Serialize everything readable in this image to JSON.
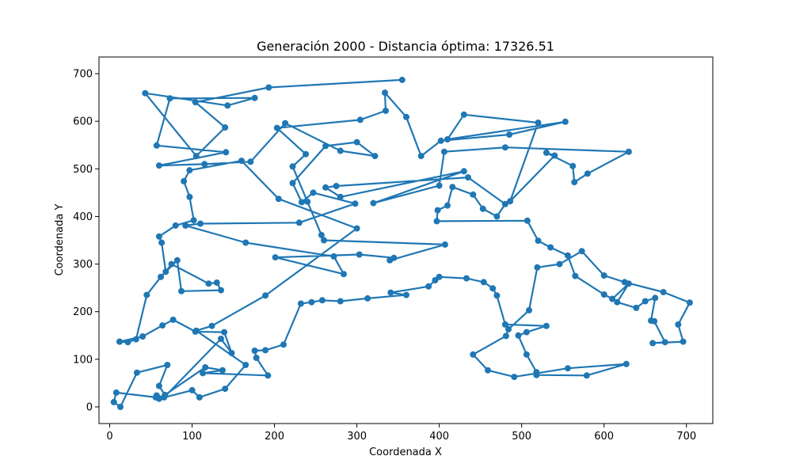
{
  "chart_data": {
    "type": "line",
    "title": "Generación 2000 - Distancia óptima: 17326.51",
    "xlabel": "Coordenada X",
    "ylabel": "Coordenada Y",
    "xlim": [
      -13,
      732
    ],
    "ylim": [
      -35,
      735
    ],
    "xticks": [
      0,
      100,
      200,
      300,
      400,
      500,
      600,
      700
    ],
    "yticks": [
      0,
      100,
      200,
      300,
      400,
      500,
      600,
      700
    ],
    "grid": false,
    "legend": "none",
    "color": "#1f77b4",
    "series": [
      {
        "marker": "circle",
        "x": [
          355,
          193,
          104,
          140,
          105,
          43,
          143,
          176,
          73,
          57,
          141,
          60,
          115,
          171,
          213,
          280,
          322,
          300,
          262,
          222,
          233,
          247,
          298,
          230,
          110,
          92,
          165,
          272,
          284,
          201,
          303,
          345,
          340,
          407,
          260,
          257,
          240,
          222,
          238,
          203,
          304,
          335,
          334,
          360,
          378,
          402,
          485,
          553,
          410,
          430,
          520,
          486,
          540,
          530,
          562,
          564,
          580,
          630,
          480,
          406,
          400,
          320,
          430,
          280,
          262,
          275,
          435,
          480,
          470,
          453,
          441,
          416,
          410,
          398,
          397,
          507,
          520,
          535,
          556,
          565,
          600,
          610,
          630,
          616,
          639,
          650,
          662,
          657,
          661,
          674,
          659,
          696,
          690,
          704,
          672,
          625,
          600,
          573,
          546,
          519,
          509,
          484,
          481,
          441,
          459,
          491,
          556,
          627,
          579,
          518,
          518,
          506,
          496,
          506,
          530,
          480,
          470,
          465,
          454,
          433,
          400,
          395,
          387,
          341,
          360,
          313,
          280,
          258,
          245,
          232,
          211,
          189,
          176,
          178,
          192,
          113,
          137,
          116,
          67,
          60,
          70,
          33,
          13,
          5,
          8,
          56,
          60,
          100,
          109,
          140,
          165,
          105,
          124,
          189,
          300,
          205,
          160,
          97,
          90,
          97,
          102,
          80,
          60,
          63,
          68,
          75,
          120,
          130,
          135,
          87,
          82,
          62,
          45,
          32,
          22,
          12,
          12,
          40,
          64,
          77,
          104,
          139,
          148,
          135,
          66,
          57
        ],
        "y": [
          687,
          671,
          640,
          587,
          527,
          659,
          633,
          649,
          648,
          549,
          535,
          507,
          510,
          515,
          596,
          538,
          527,
          556,
          548,
          470,
          430,
          450,
          427,
          387,
          385,
          381,
          345,
          316,
          279,
          314,
          320,
          313,
          308,
          341,
          350,
          361,
          431,
          505,
          531,
          586,
          603,
          622,
          660,
          609,
          527,
          559,
          572,
          599,
          562,
          614,
          597,
          432,
          528,
          534,
          506,
          472,
          490,
          536,
          545,
          536,
          465,
          428,
          495,
          441,
          461,
          464,
          482,
          426,
          400,
          416,
          446,
          462,
          423,
          413,
          390,
          391,
          349,
          335,
          318,
          275,
          236,
          227,
          259,
          220,
          208,
          222,
          229,
          181,
          180,
          136,
          134,
          137,
          173,
          219,
          241,
          262,
          276,
          327,
          300,
          293,
          203,
          163,
          149,
          110,
          77,
          63,
          81,
          90,
          66,
          67,
          73,
          110,
          150,
          157,
          170,
          173,
          234,
          249,
          262,
          270,
          273,
          266,
          253,
          240,
          235,
          228,
          222,
          224,
          220,
          217,
          131,
          119,
          118,
          103,
          66,
          71,
          77,
          83,
          25,
          44,
          88,
          72,
          0,
          10,
          30,
          20,
          17,
          35,
          20,
          38,
          88,
          160,
          170,
          234,
          375,
          437,
          517,
          497,
          474,
          441,
          392,
          381,
          358,
          345,
          284,
          300,
          259,
          261,
          245,
          243,
          308,
          273,
          235,
          142,
          136,
          137,
          137,
          148,
          171,
          183,
          158,
          157,
          113,
          143,
          20,
          24
        ]
      }
    ]
  }
}
